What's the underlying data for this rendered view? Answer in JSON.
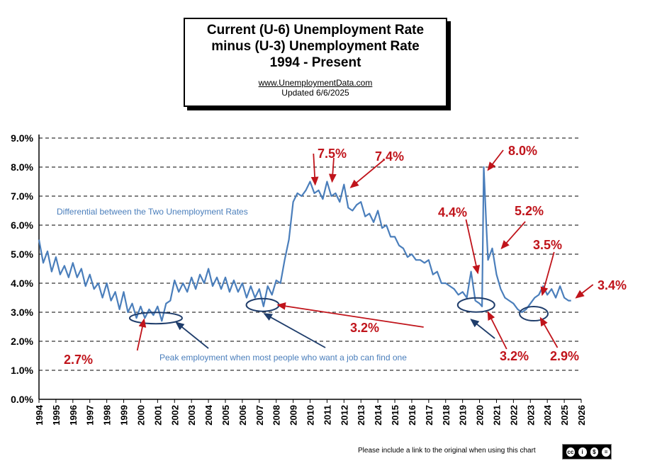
{
  "title": {
    "line1": "Current (U-6) Unemployment  Rate",
    "line2": "minus (U-3) Unemployment  Rate",
    "line3": "1994 - Present",
    "url": "www.UnemploymentData.com",
    "updated": "Updated  6/6/2025"
  },
  "footer_note": "Please include a link to the original when using this chart",
  "colors": {
    "series": "#4a7ebb",
    "annotation_red": "#c0141b",
    "annotation_blue": "#1f3d6b",
    "note_blue": "#4a7ebb"
  },
  "chart_data": {
    "type": "line",
    "xlabel": "",
    "ylabel": "",
    "xlim": [
      1994,
      2026
    ],
    "ylim": [
      0,
      9
    ],
    "y_ticks": [
      "0.0%",
      "1.0%",
      "2.0%",
      "3.0%",
      "4.0%",
      "5.0%",
      "6.0%",
      "7.0%",
      "8.0%",
      "9.0%"
    ],
    "x_ticks": [
      "1994",
      "1995",
      "1996",
      "1997",
      "1998",
      "1999",
      "2000",
      "2001",
      "2002",
      "2003",
      "2004",
      "2005",
      "2006",
      "2007",
      "2008",
      "2009",
      "2010",
      "2011",
      "2012",
      "2013",
      "2014",
      "2015",
      "2016",
      "2017",
      "2018",
      "2019",
      "2020",
      "2021",
      "2022",
      "2023",
      "2024",
      "2025",
      "2026"
    ],
    "grid": "horizontal dashed",
    "series": [
      {
        "x": [
          1994.0,
          1994.25,
          1994.5,
          1994.75,
          1995.0,
          1995.25,
          1995.5,
          1995.75,
          1996.0,
          1996.25,
          1996.5,
          1996.75,
          1997.0,
          1997.25,
          1997.5,
          1997.75,
          1998.0,
          1998.25,
          1998.5,
          1998.75,
          1999.0,
          1999.25,
          1999.5,
          1999.75,
          2000.0,
          2000.25,
          2000.5,
          2000.75,
          2001.0,
          2001.25,
          2001.5,
          2001.75,
          2002.0,
          2002.25,
          2002.5,
          2002.75,
          2003.0,
          2003.25,
          2003.5,
          2003.75,
          2004.0,
          2004.25,
          2004.5,
          2004.75,
          2005.0,
          2005.25,
          2005.5,
          2005.75,
          2006.0,
          2006.25,
          2006.5,
          2006.75,
          2007.0,
          2007.25,
          2007.5,
          2007.75,
          2008.0,
          2008.25,
          2008.5,
          2008.75,
          2009.0,
          2009.25,
          2009.5,
          2009.75,
          2010.0,
          2010.25,
          2010.5,
          2010.75,
          2011.0,
          2011.25,
          2011.5,
          2011.75,
          2012.0,
          2012.25,
          2012.5,
          2012.75,
          2013.0,
          2013.25,
          2013.5,
          2013.75,
          2014.0,
          2014.25,
          2014.5,
          2014.75,
          2015.0,
          2015.25,
          2015.5,
          2015.75,
          2016.0,
          2016.25,
          2016.5,
          2016.75,
          2017.0,
          2017.25,
          2017.5,
          2017.75,
          2018.0,
          2018.25,
          2018.5,
          2018.75,
          2019.0,
          2019.25,
          2019.5,
          2019.75,
          2020.0,
          2020.15,
          2020.25,
          2020.4,
          2020.5,
          2020.75,
          2021.0,
          2021.25,
          2021.5,
          2021.75,
          2022.0,
          2022.25,
          2022.5,
          2022.75,
          2023.0,
          2023.25,
          2023.5,
          2023.75,
          2024.0,
          2024.25,
          2024.5,
          2024.75,
          2025.0,
          2025.25,
          2025.4
        ],
        "y": [
          5.5,
          4.7,
          5.1,
          4.4,
          4.9,
          4.3,
          4.6,
          4.2,
          4.7,
          4.2,
          4.5,
          3.9,
          4.3,
          3.8,
          4.0,
          3.5,
          4.0,
          3.4,
          3.7,
          3.1,
          3.7,
          3.0,
          3.3,
          2.8,
          3.2,
          2.8,
          3.1,
          2.9,
          3.2,
          2.7,
          3.3,
          3.4,
          4.1,
          3.7,
          4.0,
          3.7,
          4.2,
          3.8,
          4.3,
          4.0,
          4.5,
          3.9,
          4.2,
          3.8,
          4.2,
          3.7,
          4.1,
          3.7,
          4.0,
          3.5,
          3.9,
          3.5,
          3.8,
          3.2,
          3.9,
          3.6,
          4.1,
          4.0,
          4.8,
          5.5,
          6.8,
          7.1,
          7.0,
          7.2,
          7.5,
          7.1,
          7.2,
          6.9,
          7.5,
          7.0,
          7.1,
          6.8,
          7.4,
          6.6,
          6.5,
          6.7,
          6.8,
          6.3,
          6.4,
          6.1,
          6.5,
          5.9,
          6.0,
          5.6,
          5.6,
          5.3,
          5.2,
          4.9,
          5.0,
          4.8,
          4.8,
          4.7,
          4.8,
          4.3,
          4.4,
          4.0,
          4.0,
          3.9,
          3.8,
          3.6,
          3.7,
          3.5,
          4.4,
          3.4,
          3.3,
          3.2,
          8.0,
          6.0,
          4.8,
          5.2,
          4.3,
          3.8,
          3.5,
          3.4,
          3.3,
          3.1,
          3.0,
          3.1,
          3.3,
          3.5,
          3.6,
          3.9,
          3.6,
          3.8,
          3.5,
          3.9,
          3.5,
          3.4,
          3.4
        ]
      }
    ],
    "annotations": {
      "differential_note": "Differential between the Two Unemployment Rates",
      "peak_note": "Peak employment when most people who want a  job can find one",
      "labels": [
        "7.5%",
        "7.4%",
        "8.0%",
        "4.4%",
        "5.2%",
        "3.5%",
        "3.4%",
        "3.2%",
        "2.7%",
        "3.2%",
        "2.9%"
      ]
    }
  }
}
